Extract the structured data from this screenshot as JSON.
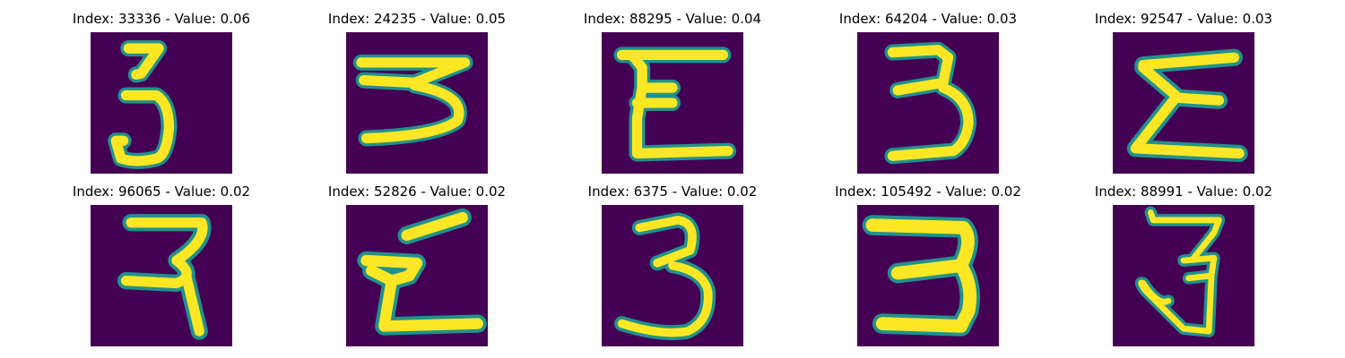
{
  "colormap": {
    "background": "#440154",
    "edge": "#21918c",
    "mid": "#5ec962",
    "core": "#fde725"
  },
  "samples": [
    {
      "title": "Index: 33336 - Value: 0.06",
      "glyph": "digit-three"
    },
    {
      "title": "Index: 24235 - Value: 0.05",
      "glyph": "digit-three"
    },
    {
      "title": "Index: 88295 - Value: 0.04",
      "glyph": "digit-three"
    },
    {
      "title": "Index: 64204 - Value: 0.03",
      "glyph": "digit-three"
    },
    {
      "title": "Index: 92547 - Value: 0.03",
      "glyph": "digit-three"
    },
    {
      "title": "Index: 96065 - Value: 0.02",
      "glyph": "digit-three"
    },
    {
      "title": "Index: 52826 - Value: 0.02",
      "glyph": "digit-three"
    },
    {
      "title": "Index: 6375 - Value: 0.02",
      "glyph": "digit-three"
    },
    {
      "title": "Index: 105492 - Value: 0.02",
      "glyph": "digit-three"
    },
    {
      "title": "Index: 88991 - Value: 0.02",
      "glyph": "digit-three"
    }
  ]
}
